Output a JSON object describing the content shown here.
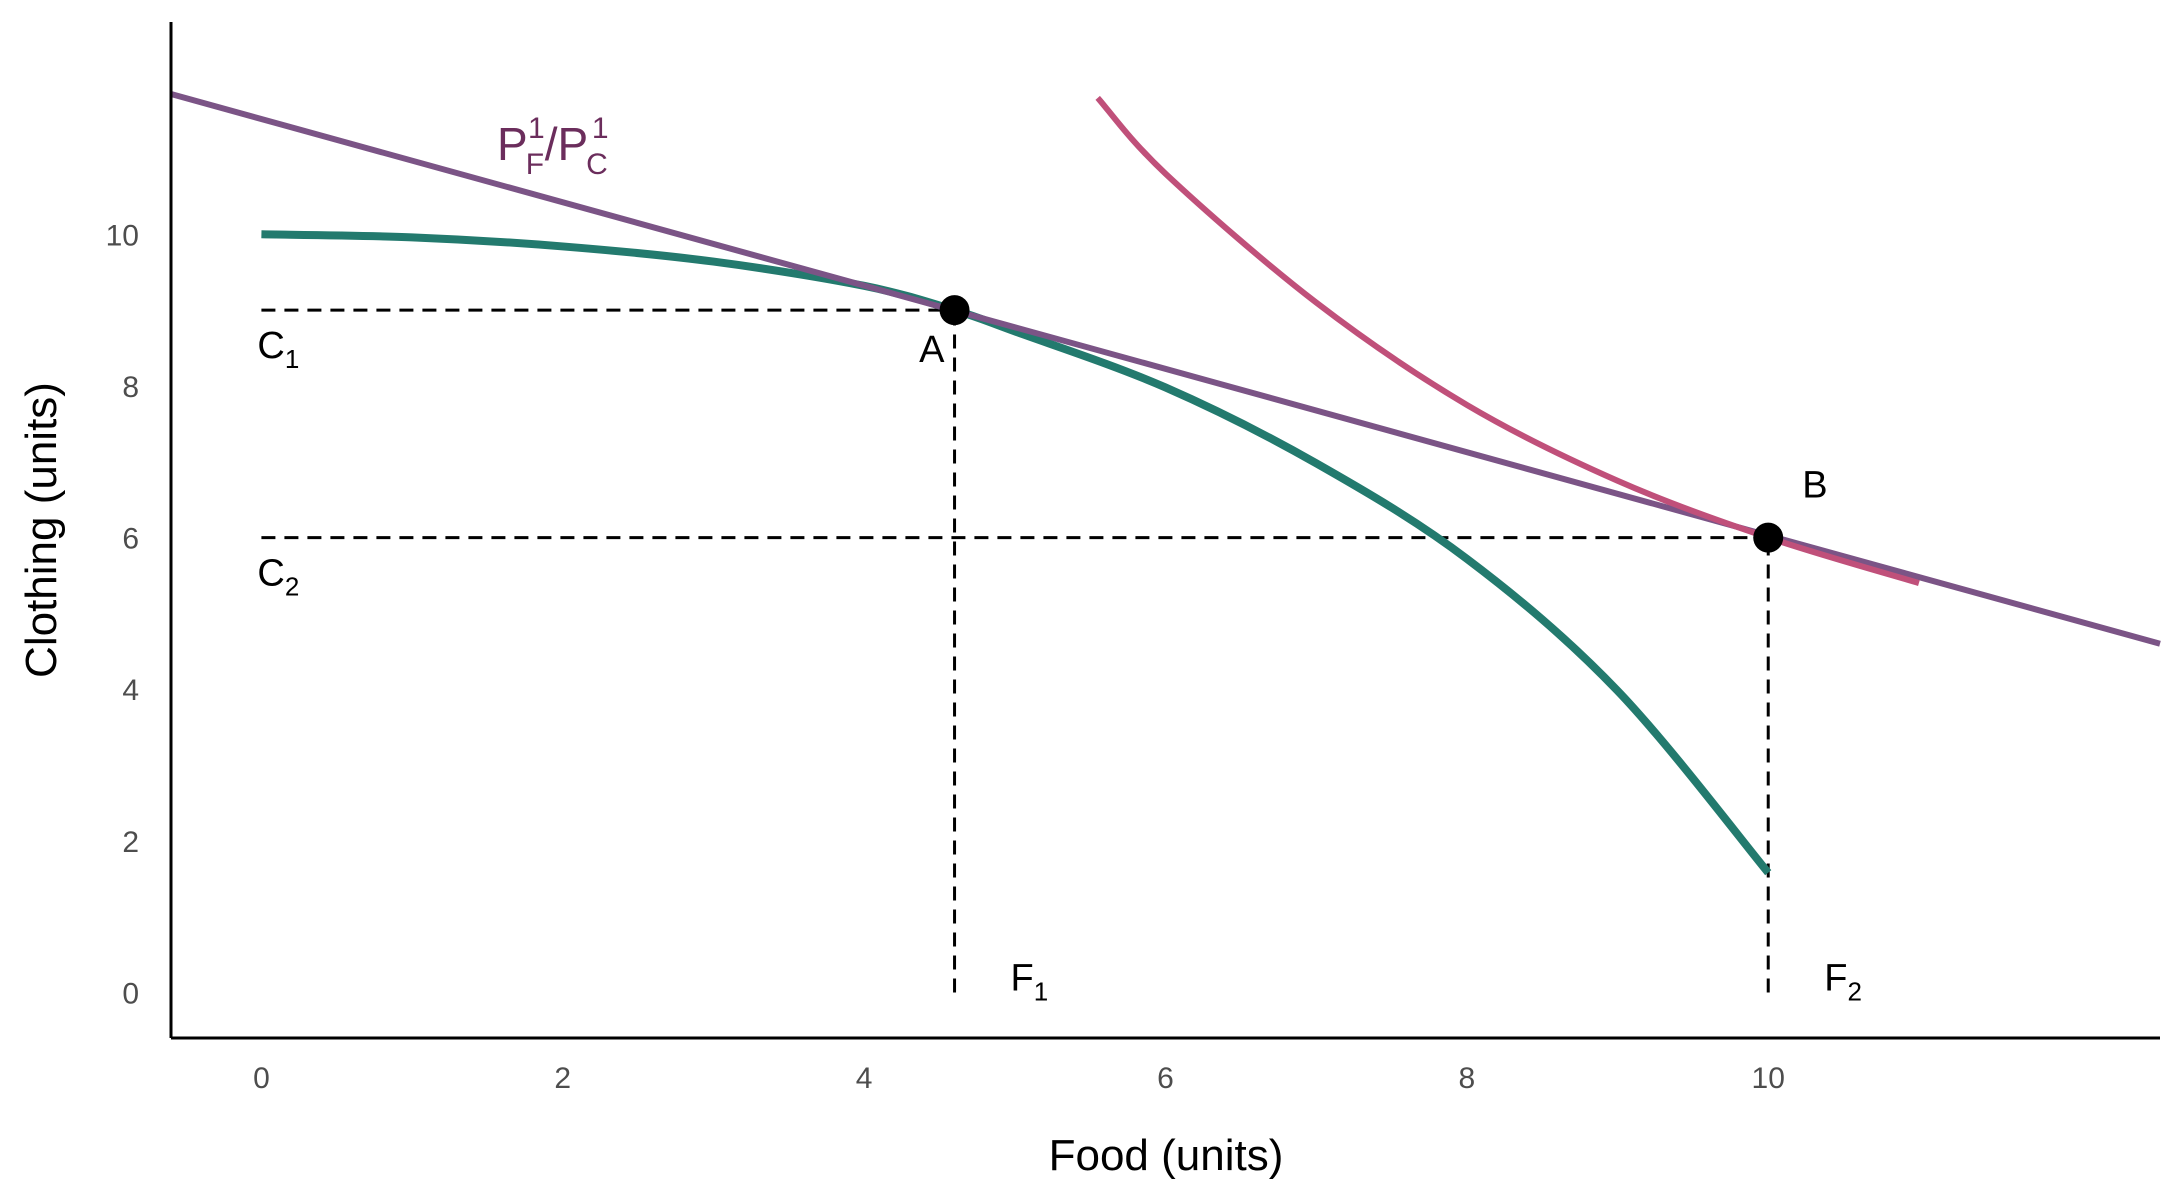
{
  "chart_data": {
    "type": "line",
    "xlabel": "Food (units)",
    "ylabel": "Clothing (units)",
    "xlim": [
      -0.6,
      12.6
    ],
    "ylim": [
      -0.6,
      12.8
    ],
    "x_ticks": [
      0,
      2,
      4,
      6,
      8,
      10
    ],
    "y_ticks": [
      0,
      2,
      4,
      6,
      8,
      10
    ],
    "grid": false,
    "series": [
      {
        "key": "ppf",
        "color": "#237a6e",
        "points": [
          [
            0,
            10
          ],
          [
            1,
            9.96
          ],
          [
            2,
            9.84
          ],
          [
            3,
            9.64
          ],
          [
            4,
            9.32
          ],
          [
            4.6,
            9.0
          ],
          [
            5,
            8.72
          ],
          [
            6,
            7.98
          ],
          [
            7,
            6.98
          ],
          [
            8,
            5.72
          ],
          [
            9,
            3.98
          ],
          [
            10,
            1.58
          ]
        ]
      },
      {
        "key": "price_line",
        "name_parts": [
          "P",
          "F",
          "1",
          "/P",
          "C",
          "1"
        ],
        "color": "#7b5486",
        "points": [
          [
            -0.6,
            11.85
          ],
          [
            12.6,
            4.6
          ]
        ]
      },
      {
        "key": "indifference_curve",
        "color": "#c0507a",
        "points": [
          [
            5.55,
            11.8
          ],
          [
            6,
            10.8
          ],
          [
            7,
            9.1
          ],
          [
            8,
            7.75
          ],
          [
            9,
            6.75
          ],
          [
            10,
            6.0
          ],
          [
            11,
            5.4
          ]
        ]
      }
    ],
    "points": [
      {
        "key": "A",
        "label": "A",
        "x": 4.6,
        "y": 9.0
      },
      {
        "key": "B",
        "label": "B",
        "x": 10.0,
        "y": 6.0
      }
    ],
    "reference_lines": [
      {
        "key": "c1",
        "type": "h",
        "value": 9.0,
        "from": 0,
        "to": 4.6,
        "label": "C",
        "sub": "1"
      },
      {
        "key": "c2",
        "type": "h",
        "value": 6.0,
        "from": 0,
        "to": 10.0,
        "label": "C",
        "sub": "2"
      },
      {
        "key": "f1",
        "type": "v",
        "value": 4.6,
        "from": 0,
        "to": 9.0,
        "label": "F",
        "sub": "1"
      },
      {
        "key": "f2",
        "type": "v",
        "value": 10.0,
        "from": 0,
        "to": 6.0,
        "label": "F",
        "sub": "2"
      }
    ]
  }
}
